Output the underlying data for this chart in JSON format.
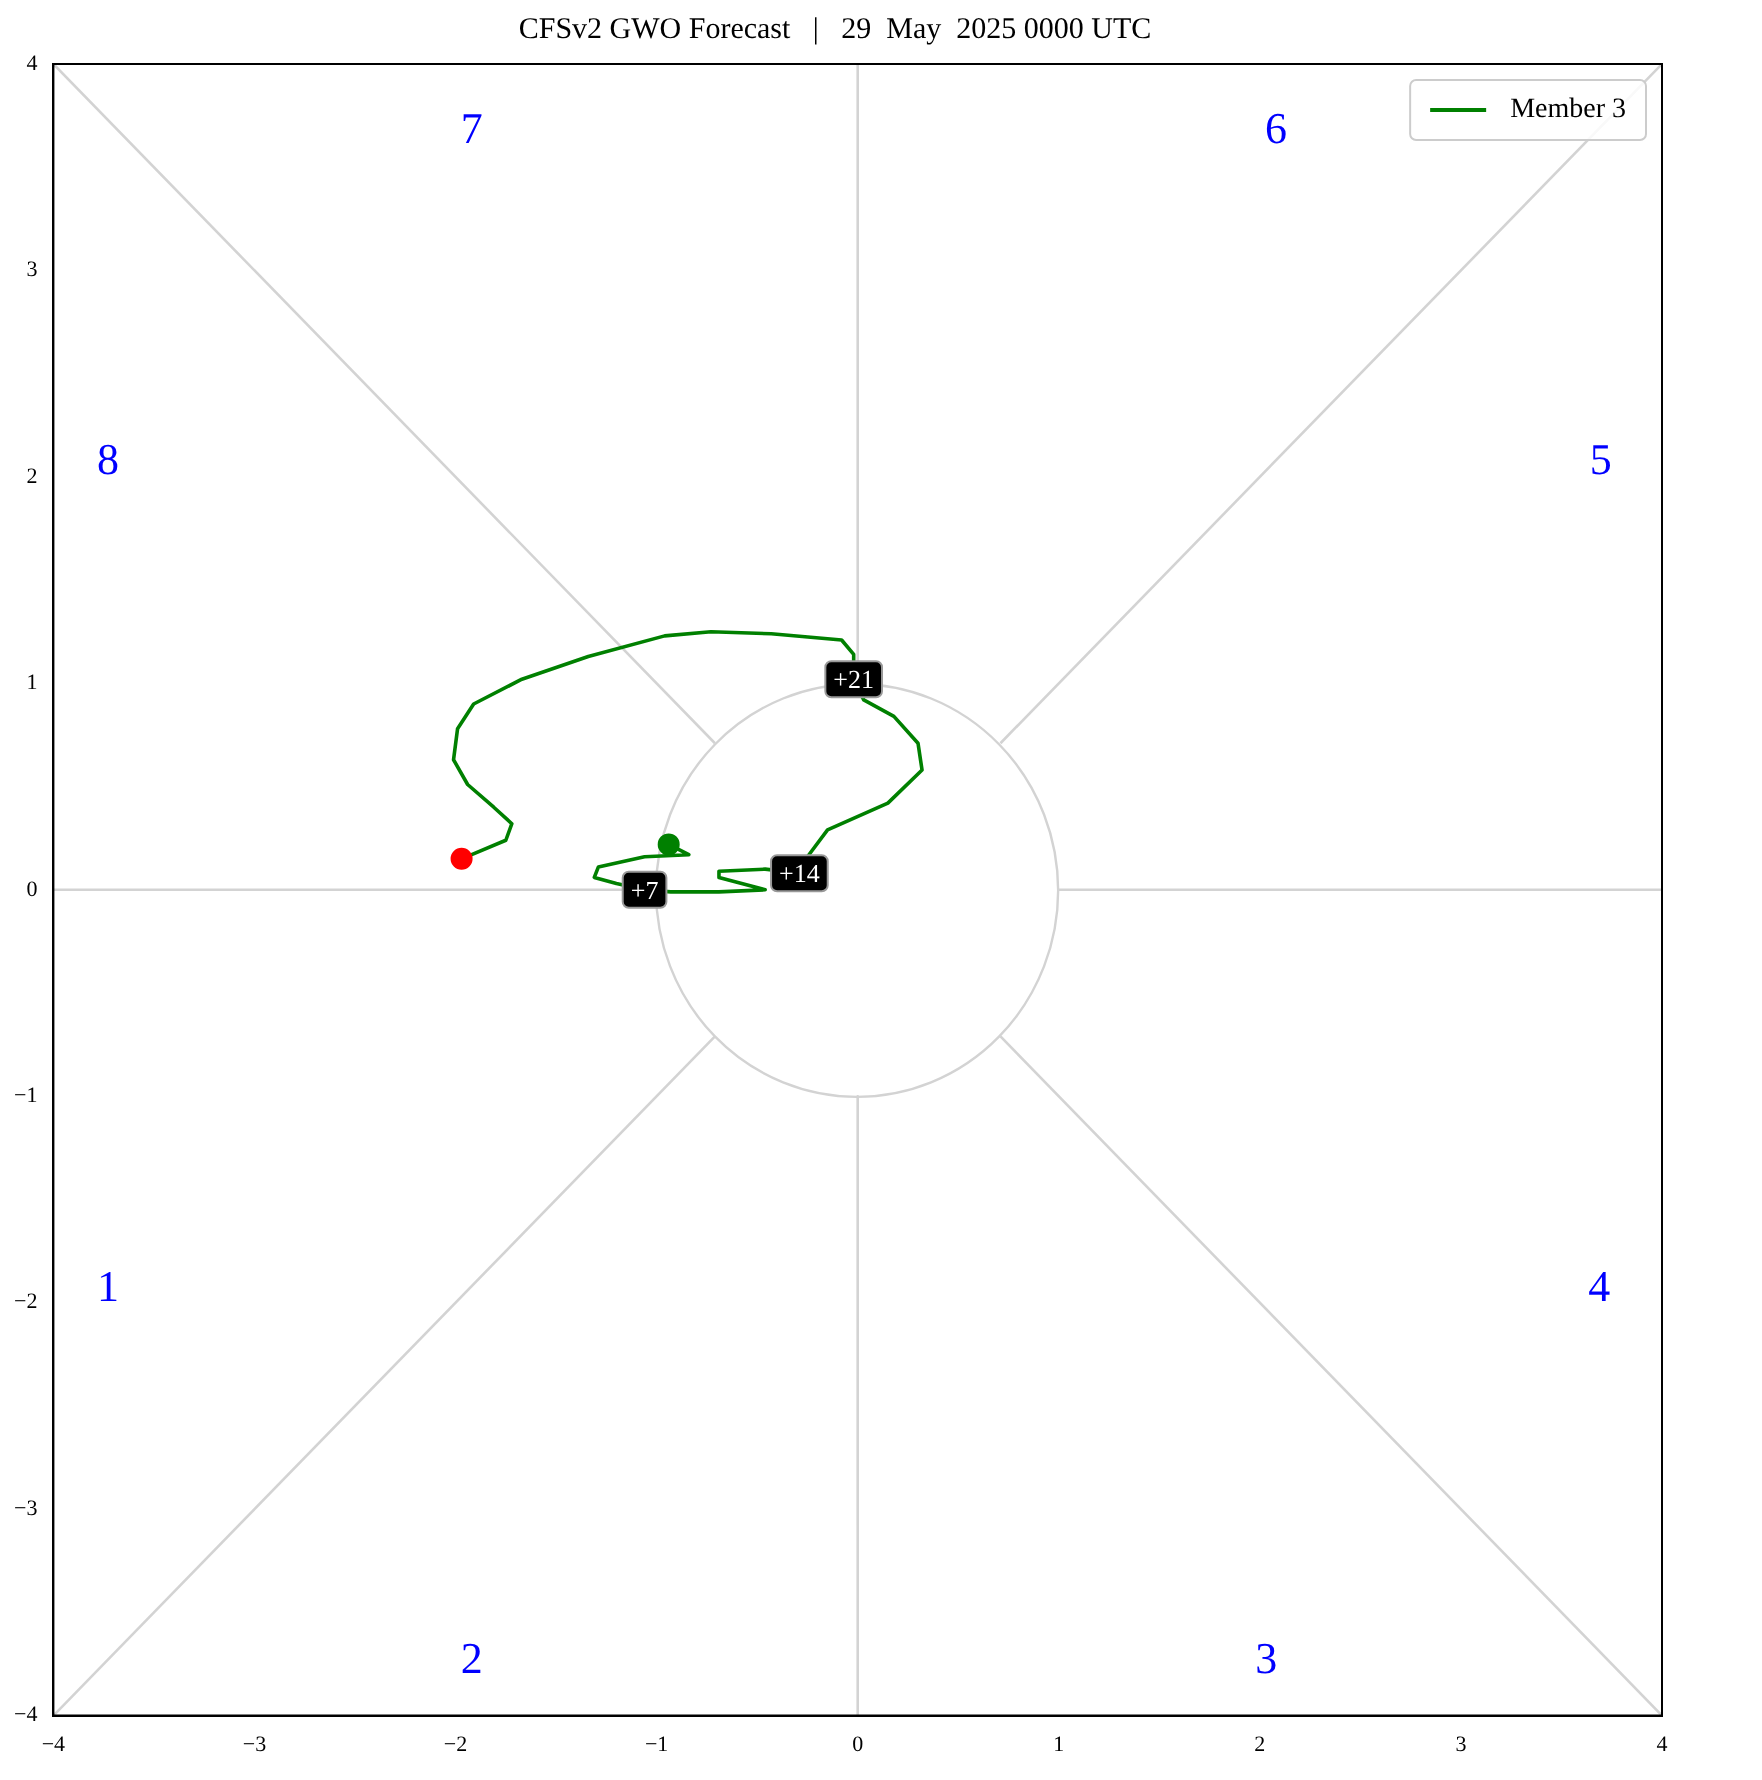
{
  "chart_data": {
    "type": "line",
    "title": "CFSv2 GWO Forecast   |   29  May  2025 0000 UTC",
    "xlim": [
      -4,
      4
    ],
    "ylim": [
      -4,
      4
    ],
    "xticks": [
      -4,
      -3,
      -2,
      -1,
      0,
      1,
      2,
      3,
      4
    ],
    "yticks": [
      -4,
      -3,
      -2,
      -1,
      0,
      1,
      2,
      3,
      4
    ],
    "grid": false,
    "legend": "top right",
    "marker": "none",
    "line_style": "solid",
    "annotations": [
      "1",
      "2",
      "3",
      "4",
      "5",
      "6",
      "7",
      "8",
      {
        "text": "+7",
        "x": -1.06,
        "y": 0
      },
      {
        "text": "+14",
        "x": -0.29,
        "y": 0.08
      },
      {
        "text": "+21",
        "x": -0.02,
        "y": 1.02
      }
    ],
    "series": [
      {
        "color": "#d3d3d3",
        "x": [
          -4,
          -1
        ],
        "values": [
          0,
          0
        ]
      },
      {
        "color": "#d3d3d3",
        "x": [
          1,
          4
        ],
        "values": [
          0,
          0
        ]
      },
      {
        "color": "#d3d3d3",
        "x": [
          0,
          0
        ],
        "values": [
          1,
          4
        ]
      },
      {
        "color": "#d3d3d3",
        "x": [
          0,
          0
        ],
        "values": [
          -1,
          -4
        ]
      },
      {
        "color": "#d3d3d3",
        "x": [
          -4,
          -0.71
        ],
        "values": [
          4,
          0.71
        ]
      },
      {
        "color": "#d3d3d3",
        "x": [
          0.71,
          4
        ],
        "values": [
          0.71,
          4
        ]
      },
      {
        "color": "#d3d3d3",
        "x": [
          -4,
          -0.71
        ],
        "values": [
          -4,
          -0.71
        ]
      },
      {
        "color": "#d3d3d3",
        "x": [
          0.71,
          4
        ],
        "values": [
          -0.71,
          -4
        ]
      },
      {
        "name": "Member 3",
        "color": "#008000",
        "x": [
          -0.94,
          -0.84,
          -1.06,
          -1.29,
          -1.31,
          -1.2,
          -1.06,
          -0.93,
          -0.69,
          -0.46,
          -0.69,
          -0.69,
          -0.46,
          -0.29,
          -0.25,
          -0.15,
          0.15,
          0.32,
          0.3,
          0.18,
          0.03,
          -0.02,
          -0.02,
          -0.08,
          -0.43,
          -0.73,
          -0.96,
          -1.34,
          -1.67,
          -1.91,
          -1.99,
          -2.01,
          -1.94,
          -1.81,
          -1.72,
          -1.75,
          -1.92,
          -1.97
        ],
        "values": [
          0.22,
          0.17,
          0.16,
          0.11,
          0.06,
          0.03,
          0,
          -0.01,
          -0.01,
          0,
          0.06,
          0.09,
          0.1,
          0.08,
          0.16,
          0.29,
          0.42,
          0.58,
          0.71,
          0.84,
          0.92,
          1.02,
          1.14,
          1.21,
          1.24,
          1.25,
          1.23,
          1.13,
          1.02,
          0.9,
          0.78,
          0.63,
          0.51,
          0.4,
          0.32,
          0.24,
          0.17,
          0.15
        ]
      },
      {
        "type": "scatter",
        "marker": "circle",
        "color": "#008000",
        "x": [
          -0.94
        ],
        "values": [
          0.22
        ]
      },
      {
        "type": "scatter",
        "marker": "circle",
        "color": "#ff0000",
        "x": [
          -1.97
        ],
        "values": [
          0.15
        ]
      }
    ]
  }
}
